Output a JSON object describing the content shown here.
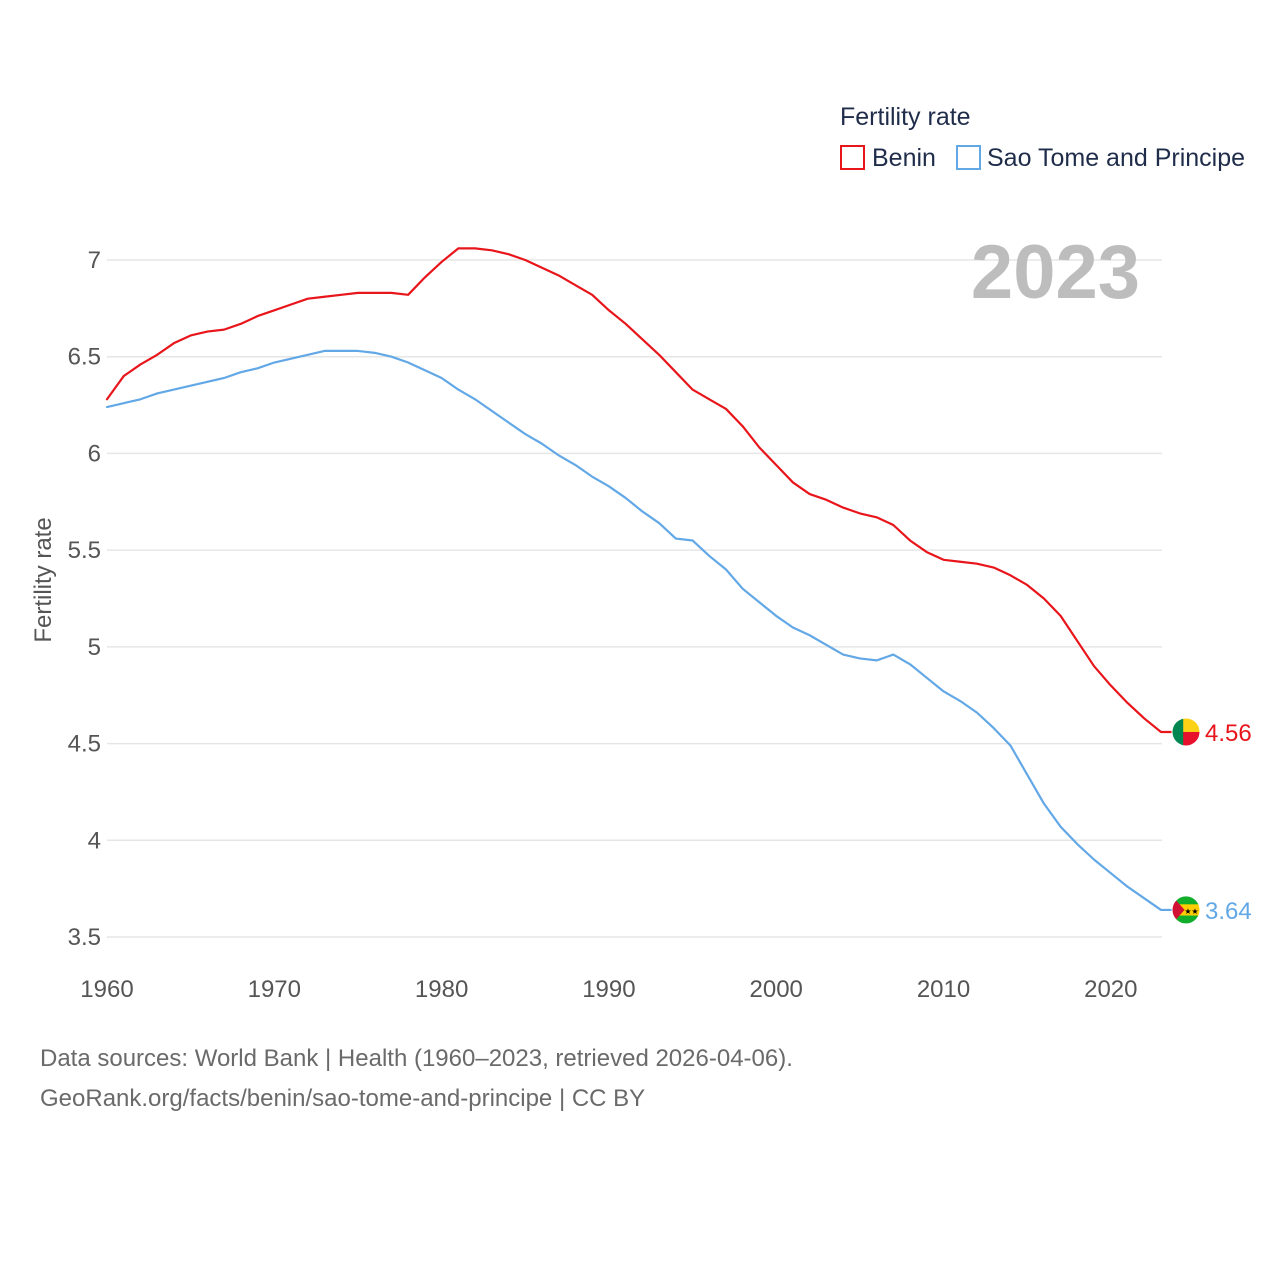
{
  "chart_data": {
    "type": "line",
    "legend_title": "Fertility rate",
    "ylabel": "Fertility rate",
    "xlabel": "",
    "year_label": "2023",
    "ylim": [
      3.5,
      7.2
    ],
    "xlim": [
      1960,
      2023
    ],
    "yticks": [
      3.5,
      4,
      4.5,
      5,
      5.5,
      6,
      6.5,
      7
    ],
    "ytick_labels": [
      "3.5",
      "4",
      "4.5",
      "5",
      "5.5",
      "6",
      "6.5",
      "7"
    ],
    "xticks": [
      1960,
      1970,
      1980,
      1990,
      2000,
      2010,
      2020
    ],
    "xtick_labels": [
      "1960",
      "1970",
      "1980",
      "1990",
      "2000",
      "2010",
      "2020"
    ],
    "grid": true,
    "legend_position": "top-right",
    "x": [
      1960,
      1961,
      1962,
      1963,
      1964,
      1965,
      1966,
      1967,
      1968,
      1969,
      1970,
      1971,
      1972,
      1973,
      1974,
      1975,
      1976,
      1977,
      1978,
      1979,
      1980,
      1981,
      1982,
      1983,
      1984,
      1985,
      1986,
      1987,
      1988,
      1989,
      1990,
      1991,
      1992,
      1993,
      1994,
      1995,
      1996,
      1997,
      1998,
      1999,
      2000,
      2001,
      2002,
      2003,
      2004,
      2005,
      2006,
      2007,
      2008,
      2009,
      2010,
      2011,
      2012,
      2013,
      2014,
      2015,
      2016,
      2017,
      2018,
      2019,
      2020,
      2021,
      2022,
      2023
    ],
    "series": [
      {
        "name": "Benin",
        "color": "#e8151b",
        "end_value": "4.56",
        "flag": "benin-flag",
        "values": [
          6.28,
          6.4,
          6.46,
          6.51,
          6.57,
          6.61,
          6.63,
          6.64,
          6.67,
          6.71,
          6.74,
          6.77,
          6.8,
          6.81,
          6.82,
          6.83,
          6.83,
          6.83,
          6.82,
          6.91,
          6.99,
          7.06,
          7.06,
          7.05,
          7.03,
          7.0,
          6.96,
          6.92,
          6.87,
          6.82,
          6.74,
          6.67,
          6.59,
          6.51,
          6.42,
          6.33,
          6.28,
          6.23,
          6.14,
          6.03,
          5.94,
          5.85,
          5.79,
          5.76,
          5.72,
          5.69,
          5.67,
          5.63,
          5.55,
          5.49,
          5.45,
          5.44,
          5.43,
          5.41,
          5.37,
          5.32,
          5.25,
          5.16,
          5.03,
          4.9,
          4.8,
          4.71,
          4.63,
          4.56
        ]
      },
      {
        "name": "Sao Tome and Principe",
        "color": "#62a8e6",
        "end_value": "3.64",
        "flag": "sao-tome-flag",
        "values": [
          6.24,
          6.26,
          6.28,
          6.31,
          6.33,
          6.35,
          6.37,
          6.39,
          6.42,
          6.44,
          6.47,
          6.49,
          6.51,
          6.53,
          6.53,
          6.53,
          6.52,
          6.5,
          6.47,
          6.43,
          6.39,
          6.33,
          6.28,
          6.22,
          6.16,
          6.1,
          6.05,
          5.99,
          5.94,
          5.88,
          5.83,
          5.77,
          5.7,
          5.64,
          5.56,
          5.55,
          5.47,
          5.4,
          5.3,
          5.23,
          5.16,
          5.1,
          5.06,
          5.01,
          4.96,
          4.94,
          4.93,
          4.96,
          4.91,
          4.84,
          4.77,
          4.72,
          4.66,
          4.58,
          4.49,
          4.34,
          4.19,
          4.07,
          3.98,
          3.9,
          3.83,
          3.76,
          3.7,
          3.64
        ]
      }
    ]
  },
  "footer": {
    "source": "Data sources: World Bank | Health (1960–2023, retrieved 2026-04-06).",
    "credit": "GeoRank.org/facts/benin/sao-tome-and-principe | CC BY"
  }
}
